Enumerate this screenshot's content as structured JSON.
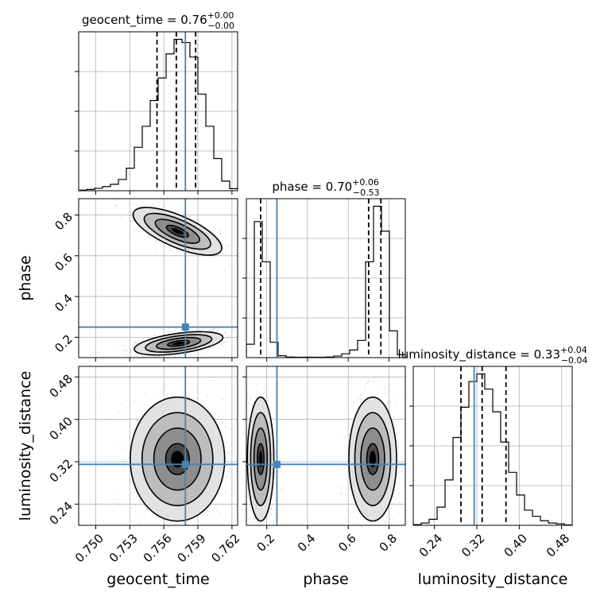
{
  "chart_data": {
    "type": "corner",
    "truth_color": "#4682b4",
    "hist_color": "#000000",
    "parameters": [
      {
        "name": "geocent_time",
        "axis_label": "geocent_time",
        "title": {
          "base": "geocent_time = 0.76",
          "plus": "+0.00",
          "minus": "−0.00"
        },
        "range": [
          0.7485,
          0.7625
        ],
        "ticks": [
          0.75,
          0.753,
          0.756,
          0.759,
          0.762
        ],
        "tick_labels": [
          "0.750",
          "0.753",
          "0.756",
          "0.759",
          "0.762"
        ],
        "quantiles": [
          0.7554,
          0.7571,
          0.7588
        ],
        "truth": 0.7579,
        "hist_bin_edges": [
          0.7485,
          0.7492,
          0.7499,
          0.7506,
          0.7513,
          0.752,
          0.7527,
          0.7534,
          0.7541,
          0.7548,
          0.7555,
          0.7562,
          0.7569,
          0.7576,
          0.7583,
          0.759,
          0.7597,
          0.7604,
          0.7611,
          0.7618,
          0.7625
        ],
        "hist_counts": [
          0.4,
          0.8,
          1.5,
          2.6,
          4.0,
          7.0,
          14,
          27,
          40,
          56,
          70,
          85,
          94,
          92,
          83,
          60,
          40,
          20,
          6,
          1.3
        ]
      },
      {
        "name": "phase",
        "axis_label": "phase",
        "title": {
          "base": "phase = 0.70",
          "plus": "+0.06",
          "minus": "−0.53"
        },
        "range": [
          0.1,
          0.88
        ],
        "ticks": [
          0.2,
          0.4,
          0.6,
          0.8
        ],
        "tick_labels": [
          "0.2",
          "0.4",
          "0.6",
          "0.8"
        ],
        "quantiles": [
          0.17,
          0.7,
          0.76
        ],
        "truth": 0.25,
        "hist_bin_edges": [
          0.1,
          0.139,
          0.178,
          0.217,
          0.256,
          0.295,
          0.334,
          0.373,
          0.412,
          0.451,
          0.49,
          0.529,
          0.568,
          0.607,
          0.646,
          0.685,
          0.724,
          0.763,
          0.802,
          0.841,
          0.88
        ],
        "hist_counts": [
          7,
          71,
          50,
          8,
          1,
          0.3,
          0.2,
          0.2,
          0.2,
          0.2,
          0.3,
          0.8,
          2,
          4,
          9,
          50,
          79,
          66,
          14,
          1.5
        ]
      },
      {
        "name": "luminosity_distance",
        "axis_label": "luminosity_distance",
        "title": {
          "base": "luminosity_distance = 0.33",
          "plus": "+0.04",
          "minus": "−0.04"
        },
        "range": [
          0.2,
          0.5
        ],
        "ticks": [
          0.24,
          0.32,
          0.4,
          0.48
        ],
        "tick_labels": [
          "0.24",
          "0.32",
          "0.40",
          "0.48"
        ],
        "quantiles": [
          0.29,
          0.33,
          0.375
        ],
        "truth": 0.315,
        "hist_bin_edges": [
          0.2,
          0.215,
          0.23,
          0.245,
          0.26,
          0.275,
          0.29,
          0.305,
          0.32,
          0.335,
          0.35,
          0.365,
          0.38,
          0.395,
          0.41,
          0.425,
          0.44,
          0.455,
          0.47,
          0.485,
          0.5
        ],
        "hist_counts": [
          0.5,
          1.5,
          4,
          12,
          30,
          58,
          78,
          95,
          100,
          90,
          75,
          55,
          35,
          20,
          10,
          6,
          3,
          1.5,
          1,
          0.3
        ]
      }
    ],
    "contour_levels": [
      0.5,
      1.0,
      1.5,
      2.0
    ],
    "modes": {
      "phase_vs_geocent_time": [
        {
          "center": [
            0.7572,
            0.72
          ],
          "sigma": [
            0.0015,
            0.045
          ],
          "corr": -0.7,
          "weight": 1.0
        },
        {
          "center": [
            0.7573,
            0.17
          ],
          "sigma": [
            0.0015,
            0.022
          ],
          "corr": 0.5,
          "weight": 1.0
        }
      ],
      "luminosity_distance_vs_geocent_time": [
        {
          "center": [
            0.7572,
            0.325
          ],
          "sigma": [
            0.0016,
            0.045
          ],
          "corr": 0.0,
          "weight": 1.0
        }
      ],
      "luminosity_distance_vs_phase": [
        {
          "center": [
            0.17,
            0.325
          ],
          "sigma": [
            0.025,
            0.045
          ],
          "corr": 0.0,
          "weight": 1.0
        },
        {
          "center": [
            0.72,
            0.325
          ],
          "sigma": [
            0.045,
            0.045
          ],
          "corr": 0.0,
          "weight": 1.0
        }
      ]
    }
  }
}
